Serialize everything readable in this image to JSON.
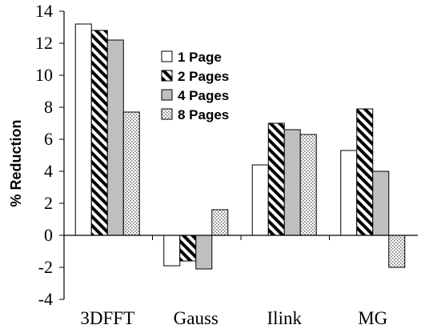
{
  "chart_data": {
    "type": "bar",
    "title": "",
    "xlabel": "",
    "ylabel": "% Reduction",
    "categories": [
      "3DFFT",
      "Gauss",
      "Ilink",
      "MG"
    ],
    "ylim": [
      -4,
      14
    ],
    "yticks": [
      -4,
      -2,
      0,
      2,
      4,
      6,
      8,
      10,
      12,
      14
    ],
    "grid": false,
    "legend_position": "top-center",
    "series": [
      {
        "name": "1 Page",
        "pattern": "white",
        "values": [
          13.2,
          -1.9,
          4.4,
          5.3
        ]
      },
      {
        "name": "2 Pages",
        "pattern": "diagonal-hatch",
        "values": [
          12.8,
          -1.6,
          7.0,
          7.9
        ]
      },
      {
        "name": "4 Pages",
        "pattern": "gray",
        "values": [
          12.2,
          -2.1,
          6.6,
          4.0
        ]
      },
      {
        "name": "8 Pages",
        "pattern": "dotted",
        "values": [
          7.7,
          1.6,
          6.3,
          -2.0
        ]
      }
    ]
  }
}
